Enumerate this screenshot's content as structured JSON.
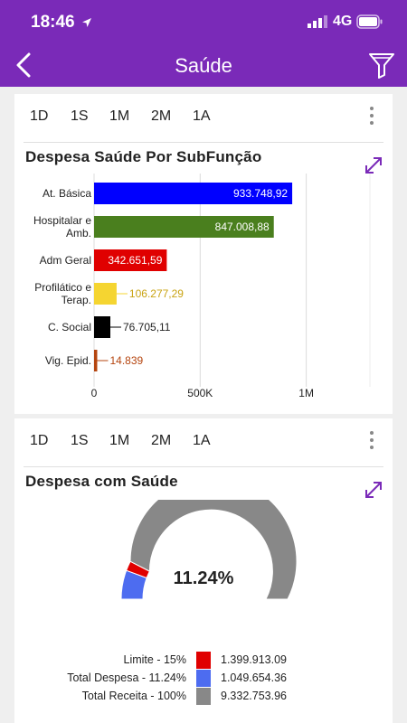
{
  "status_bar": {
    "time": "18:46",
    "network": "4G"
  },
  "nav": {
    "title": "Saúde"
  },
  "range_options": [
    "1D",
    "1S",
    "1M",
    "2M",
    "1A"
  ],
  "card1": {
    "title": "Despesa Saúde Por SubFunção",
    "chart_data": {
      "type": "bar",
      "orientation": "horizontal",
      "title": "Despesa Saúde Por SubFunção",
      "categories": [
        [
          "At. Básica"
        ],
        [
          "Hospitalar e",
          "Amb."
        ],
        [
          "Adm Geral"
        ],
        [
          "Profilático e",
          "Terap."
        ],
        [
          "C. Social"
        ],
        [
          "Vig. Epid."
        ]
      ],
      "values": [
        933748.92,
        847008.88,
        342651.59,
        106277.29,
        76705.11,
        14839
      ],
      "data_labels": [
        "933.748,92",
        "847.008,88",
        "342.651,59",
        "106.277,29",
        "76.705,11",
        "14.839"
      ],
      "colors": [
        "#0000ff",
        "#4a7f1e",
        "#e00000",
        "#f5d531",
        "#000000",
        "#b5450f"
      ],
      "label_colors": [
        "#ffffff",
        "#ffffff",
        "#ffffff",
        "#c9a312",
        "#222222",
        "#b5450f"
      ],
      "xlim": [
        0,
        1300000
      ],
      "xticks": [
        0,
        500000,
        1000000
      ],
      "xtick_labels": [
        "0",
        "500K",
        "1M"
      ],
      "grid": true
    }
  },
  "card2": {
    "title": "Despesa com Saúde",
    "chart_data": {
      "type": "gauge",
      "title": "Despesa com Saúde",
      "center_label": "11.24%",
      "max": 9332753.96,
      "segments": [
        {
          "name": "Limite - 15%",
          "value": 1399913.09,
          "display": "1.399.913.09",
          "color": "#e00000"
        },
        {
          "name": "Total Despesa - 11.24%",
          "value": 1049654.36,
          "display": "1.049.654.36",
          "color": "#4d6cf0"
        },
        {
          "name": "Total Receita - 100%",
          "value": 9332753.96,
          "display": "9.332.753.96",
          "color": "#888888"
        }
      ]
    }
  }
}
